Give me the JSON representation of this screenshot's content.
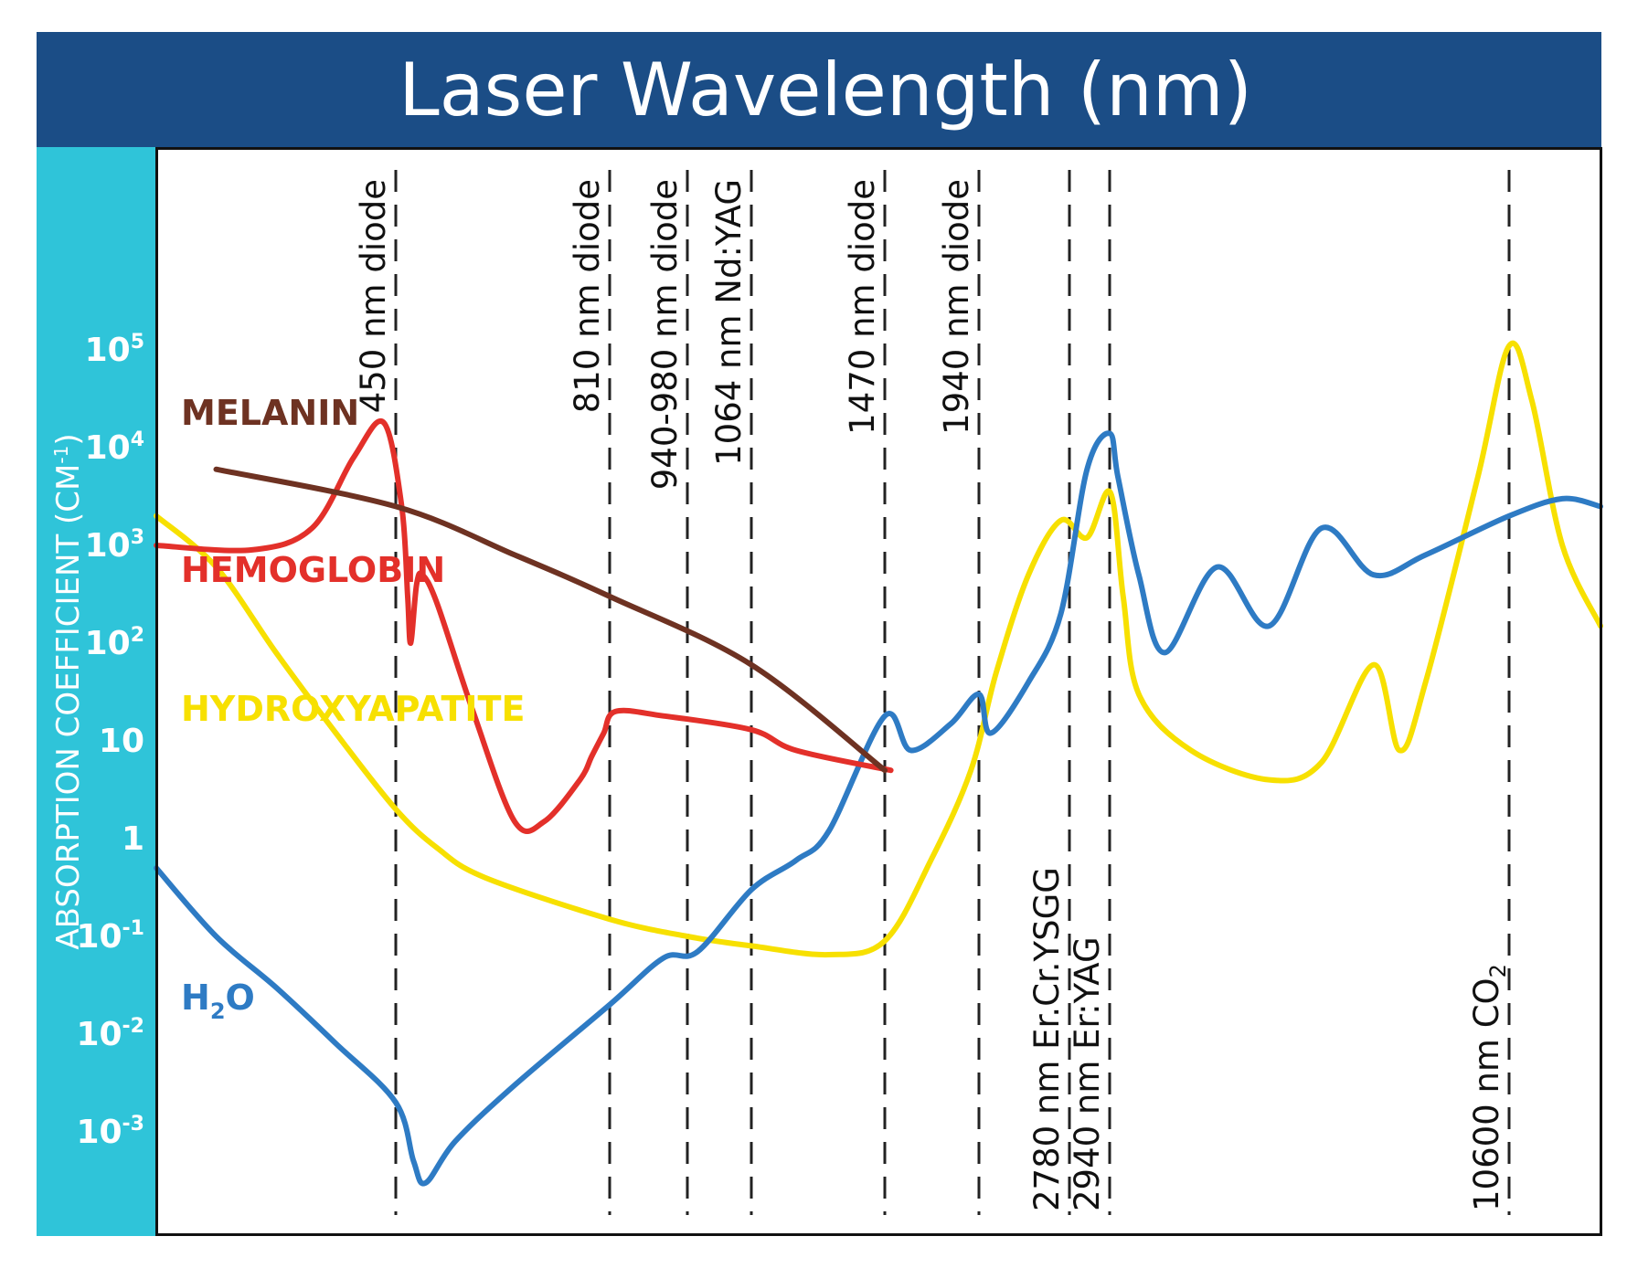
{
  "chart_data": {
    "type": "line",
    "title": "Laser Wavelength (nm)",
    "xlabel": "",
    "ylabel": "ABSORPTION COEFFICIENT (CM",
    "ylabel_sup": "-1",
    "ylabel_close": ")",
    "y_scale": "log",
    "ylim": [
      0.0005,
      500000
    ],
    "y_ticks": [
      {
        "value": 100000,
        "base": "10",
        "exp": "5"
      },
      {
        "value": 10000,
        "base": "10",
        "exp": "4"
      },
      {
        "value": 1000,
        "base": "10",
        "exp": "3"
      },
      {
        "value": 100,
        "base": "10",
        "exp": "2"
      },
      {
        "value": 10,
        "base": "10",
        "exp": ""
      },
      {
        "value": 1,
        "base": "1",
        "exp": ""
      },
      {
        "value": 0.1,
        "base": "10",
        "exp": "-1"
      },
      {
        "value": 0.01,
        "base": "10",
        "exp": "-2"
      },
      {
        "value": 0.001,
        "base": "10",
        "exp": "-3"
      }
    ],
    "reference_lines": [
      {
        "wavelength": 450,
        "label": "450 nm diode",
        "label_side": "top"
      },
      {
        "wavelength": 810,
        "label": "810 nm diode",
        "label_side": "top"
      },
      {
        "wavelength": 940,
        "label": "940-980 nm diode",
        "label_side": "top"
      },
      {
        "wavelength": 1064,
        "label": "1064 nm Nd:YAG",
        "label_side": "top"
      },
      {
        "wavelength": 1470,
        "label": "1470 nm diode",
        "label_side": "top"
      },
      {
        "wavelength": 1940,
        "label": "1940 nm diode",
        "label_side": "top"
      },
      {
        "wavelength": 2780,
        "label": "2780 nm Er.Cr.YSGG",
        "label_side": "bottom"
      },
      {
        "wavelength": 2940,
        "label": "2940 nm Er:YAG",
        "label_side": "bottom"
      },
      {
        "wavelength": 10600,
        "label": "10600 nm CO",
        "label_sub": "2",
        "label_side": "bottom"
      }
    ],
    "series": [
      {
        "name": "MELANIN",
        "color": "#6e3222",
        "points": [
          [
            300,
            6000
          ],
          [
            450,
            2500
          ],
          [
            650,
            800
          ],
          [
            810,
            300
          ],
          [
            1064,
            60
          ],
          [
            1470,
            5
          ]
        ]
      },
      {
        "name": "HEMOGLOBIN",
        "color": "#e3302a",
        "points": [
          [
            250,
            1000
          ],
          [
            330,
            900
          ],
          [
            380,
            1500
          ],
          [
            415,
            8000
          ],
          [
            440,
            18000
          ],
          [
            460,
            2500
          ],
          [
            470,
            300
          ],
          [
            475,
            100
          ],
          [
            485,
            400
          ],
          [
            495,
            500
          ],
          [
            520,
            250
          ],
          [
            580,
            20
          ],
          [
            650,
            1.5
          ],
          [
            700,
            1.5
          ],
          [
            760,
            4
          ],
          [
            780,
            7
          ],
          [
            800,
            12
          ],
          [
            820,
            20
          ],
          [
            900,
            18
          ],
          [
            1064,
            13
          ],
          [
            1200,
            8
          ],
          [
            1500,
            5
          ]
        ]
      },
      {
        "name": "HYDROXYAPATITE",
        "color": "#f7e000",
        "points": [
          [
            250,
            2000
          ],
          [
            300,
            600
          ],
          [
            350,
            80
          ],
          [
            400,
            12
          ],
          [
            450,
            2
          ],
          [
            520,
            0.8
          ],
          [
            600,
            0.4
          ],
          [
            810,
            0.15
          ],
          [
            940,
            0.1
          ],
          [
            1064,
            0.08
          ],
          [
            1300,
            0.065
          ],
          [
            1470,
            0.09
          ],
          [
            1700,
            0.6
          ],
          [
            1900,
            5
          ],
          [
            2100,
            50
          ],
          [
            2400,
            500
          ],
          [
            2700,
            1800
          ],
          [
            2850,
            1200
          ],
          [
            2950,
            3500
          ],
          [
            3200,
            300
          ],
          [
            3500,
            30
          ],
          [
            4500,
            8
          ],
          [
            6000,
            4
          ],
          [
            7000,
            6
          ],
          [
            8000,
            60
          ],
          [
            8500,
            8
          ],
          [
            9000,
            40
          ],
          [
            10000,
            5000
          ],
          [
            10600,
            110000
          ],
          [
            11200,
            30000
          ],
          [
            12000,
            1000
          ],
          [
            13000,
            150
          ]
        ]
      },
      {
        "name": "H₂O",
        "color": "#2e7bc4",
        "points": [
          [
            250,
            0.5
          ],
          [
            300,
            0.1
          ],
          [
            350,
            0.03
          ],
          [
            400,
            0.008
          ],
          [
            450,
            0.002
          ],
          [
            480,
            0.0005
          ],
          [
            500,
            0.0003
          ],
          [
            550,
            0.0008
          ],
          [
            650,
            0.003
          ],
          [
            810,
            0.02
          ],
          [
            900,
            0.06
          ],
          [
            960,
            0.07
          ],
          [
            1064,
            0.3
          ],
          [
            1200,
            0.6
          ],
          [
            1300,
            1.2
          ],
          [
            1470,
            18
          ],
          [
            1600,
            8
          ],
          [
            1800,
            15
          ],
          [
            1940,
            30
          ],
          [
            2050,
            12
          ],
          [
            2400,
            40
          ],
          [
            2700,
            200
          ],
          [
            2850,
            6000
          ],
          [
            2940,
            14000
          ],
          [
            3100,
            5000
          ],
          [
            3500,
            500
          ],
          [
            4000,
            80
          ],
          [
            5000,
            600
          ],
          [
            6000,
            150
          ],
          [
            7000,
            1500
          ],
          [
            8000,
            500
          ],
          [
            9000,
            800
          ],
          [
            10600,
            2000
          ],
          [
            12000,
            3000
          ],
          [
            13000,
            2500
          ]
        ]
      }
    ],
    "legend": [
      {
        "text": "MELANIN",
        "color": "#6e3222"
      },
      {
        "text": "HEMOGLOBIN",
        "color": "#e3302a"
      },
      {
        "text": "HYDROXYAPATITE",
        "color": "#f7e000"
      },
      {
        "text": "H",
        "sub": "2",
        "tail": "O",
        "color": "#2e7bc4"
      }
    ],
    "legend_placement": "left",
    "grid": false,
    "colors": {
      "title_bar": "#1b4d86",
      "y_band": "#2fc4d9",
      "ref_line": "#222222"
    }
  }
}
